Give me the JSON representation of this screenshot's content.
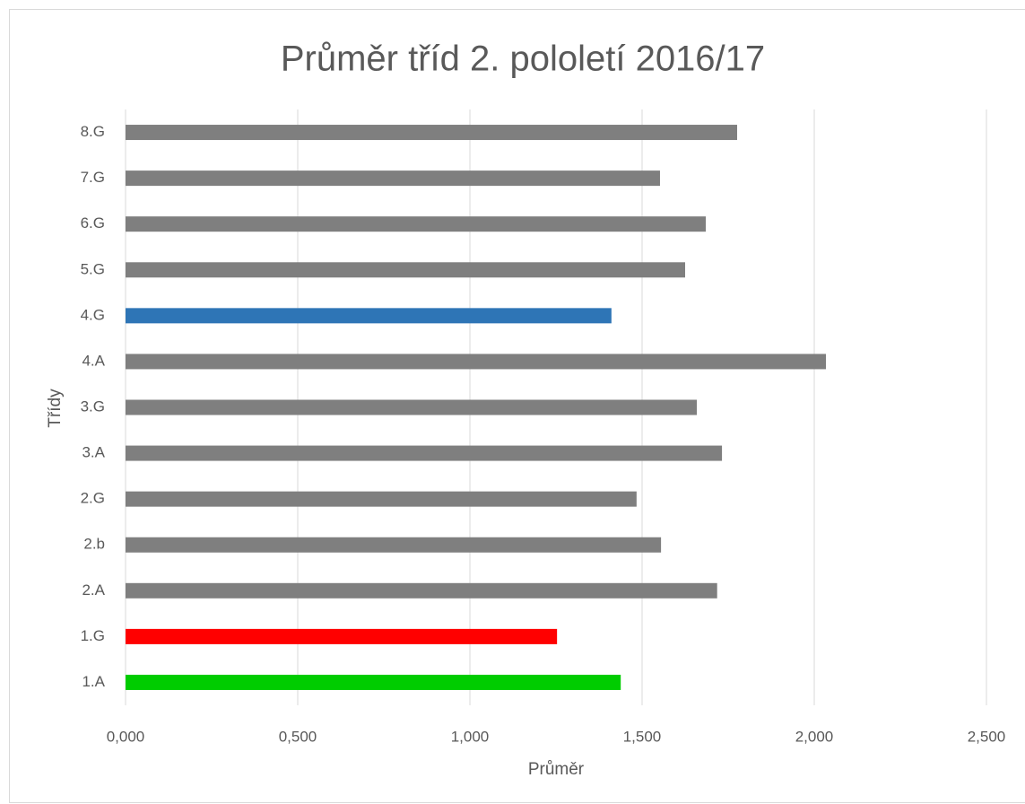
{
  "chart_data": {
    "type": "bar",
    "orientation": "horizontal",
    "title": "Průměr tříd 2. pololetí 2016/17",
    "xlabel": "Průměr",
    "ylabel": "Třídy",
    "categories": [
      "1.A",
      "1.G",
      "2.A",
      "2.b",
      "2.G",
      "3.A",
      "3.G",
      "4.A",
      "4.G",
      "5.G",
      "6.G",
      "7.G",
      "8.G"
    ],
    "values": [
      1.438,
      1.253,
      1.718,
      1.555,
      1.484,
      1.732,
      1.659,
      2.034,
      1.411,
      1.625,
      1.685,
      1.552,
      1.776
    ],
    "colors": [
      "#00cc00",
      "#ff0000",
      "#7f7f7f",
      "#7f7f7f",
      "#7f7f7f",
      "#7f7f7f",
      "#7f7f7f",
      "#7f7f7f",
      "#2e75b6",
      "#7f7f7f",
      "#7f7f7f",
      "#7f7f7f",
      "#7f7f7f"
    ],
    "xlim": [
      0,
      2.5
    ],
    "xticks": [
      {
        "value": 0,
        "label": "0,000"
      },
      {
        "value": 0.5,
        "label": "0,500"
      },
      {
        "value": 1,
        "label": "1,000"
      },
      {
        "value": 1.5,
        "label": "1,500"
      },
      {
        "value": 2,
        "label": "2,000"
      },
      {
        "value": 2.5,
        "label": "2,500"
      }
    ],
    "grid": true
  }
}
